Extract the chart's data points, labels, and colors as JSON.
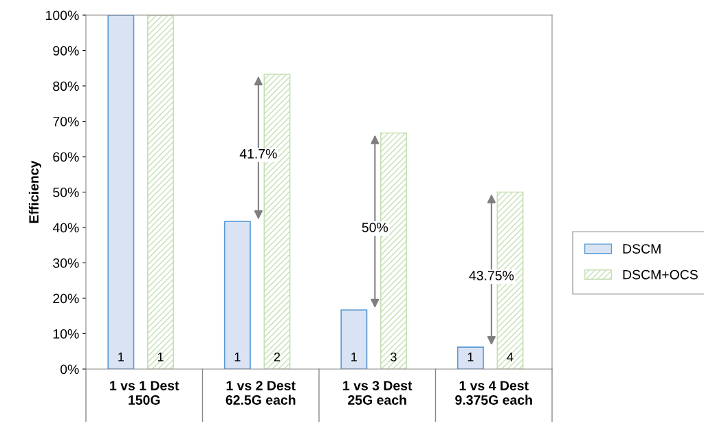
{
  "chart_data": {
    "type": "bar",
    "ylabel": "Efficiency",
    "categories": [
      "1 vs 1 Dest\n150G",
      "1 vs 2 Dest\n62.5G each",
      "1 vs 3 Dest\n25G each",
      "1 vs 4 Dest\n9.375G each"
    ],
    "series": [
      {
        "name": "DSCM",
        "color": "#dae3f3",
        "values": [
          100,
          41.7,
          16.7,
          6.2
        ]
      },
      {
        "name": "DSCM+OCS",
        "color": "#c5e0b4",
        "values": [
          100,
          83.3,
          66.7,
          50
        ]
      }
    ],
    "annotations": [
      "1",
      "1",
      "1",
      "2",
      "1",
      "3",
      "1",
      "4",
      "41.7%",
      "50%",
      "43.75%"
    ],
    "ylim": [
      0,
      100
    ],
    "yticks": [
      {
        "value": 0,
        "label": "0%"
      },
      {
        "value": 10,
        "label": "10%"
      },
      {
        "value": 20,
        "label": "20%"
      },
      {
        "value": 30,
        "label": "30%"
      },
      {
        "value": 40,
        "label": "40%"
      },
      {
        "value": 50,
        "label": "50%"
      },
      {
        "value": 60,
        "label": "60%"
      },
      {
        "value": 70,
        "label": "70%"
      },
      {
        "value": 80,
        "label": "80%"
      },
      {
        "value": 90,
        "label": "90%"
      },
      {
        "value": 100,
        "label": "100%"
      }
    ],
    "grid": false,
    "legend": "right"
  }
}
